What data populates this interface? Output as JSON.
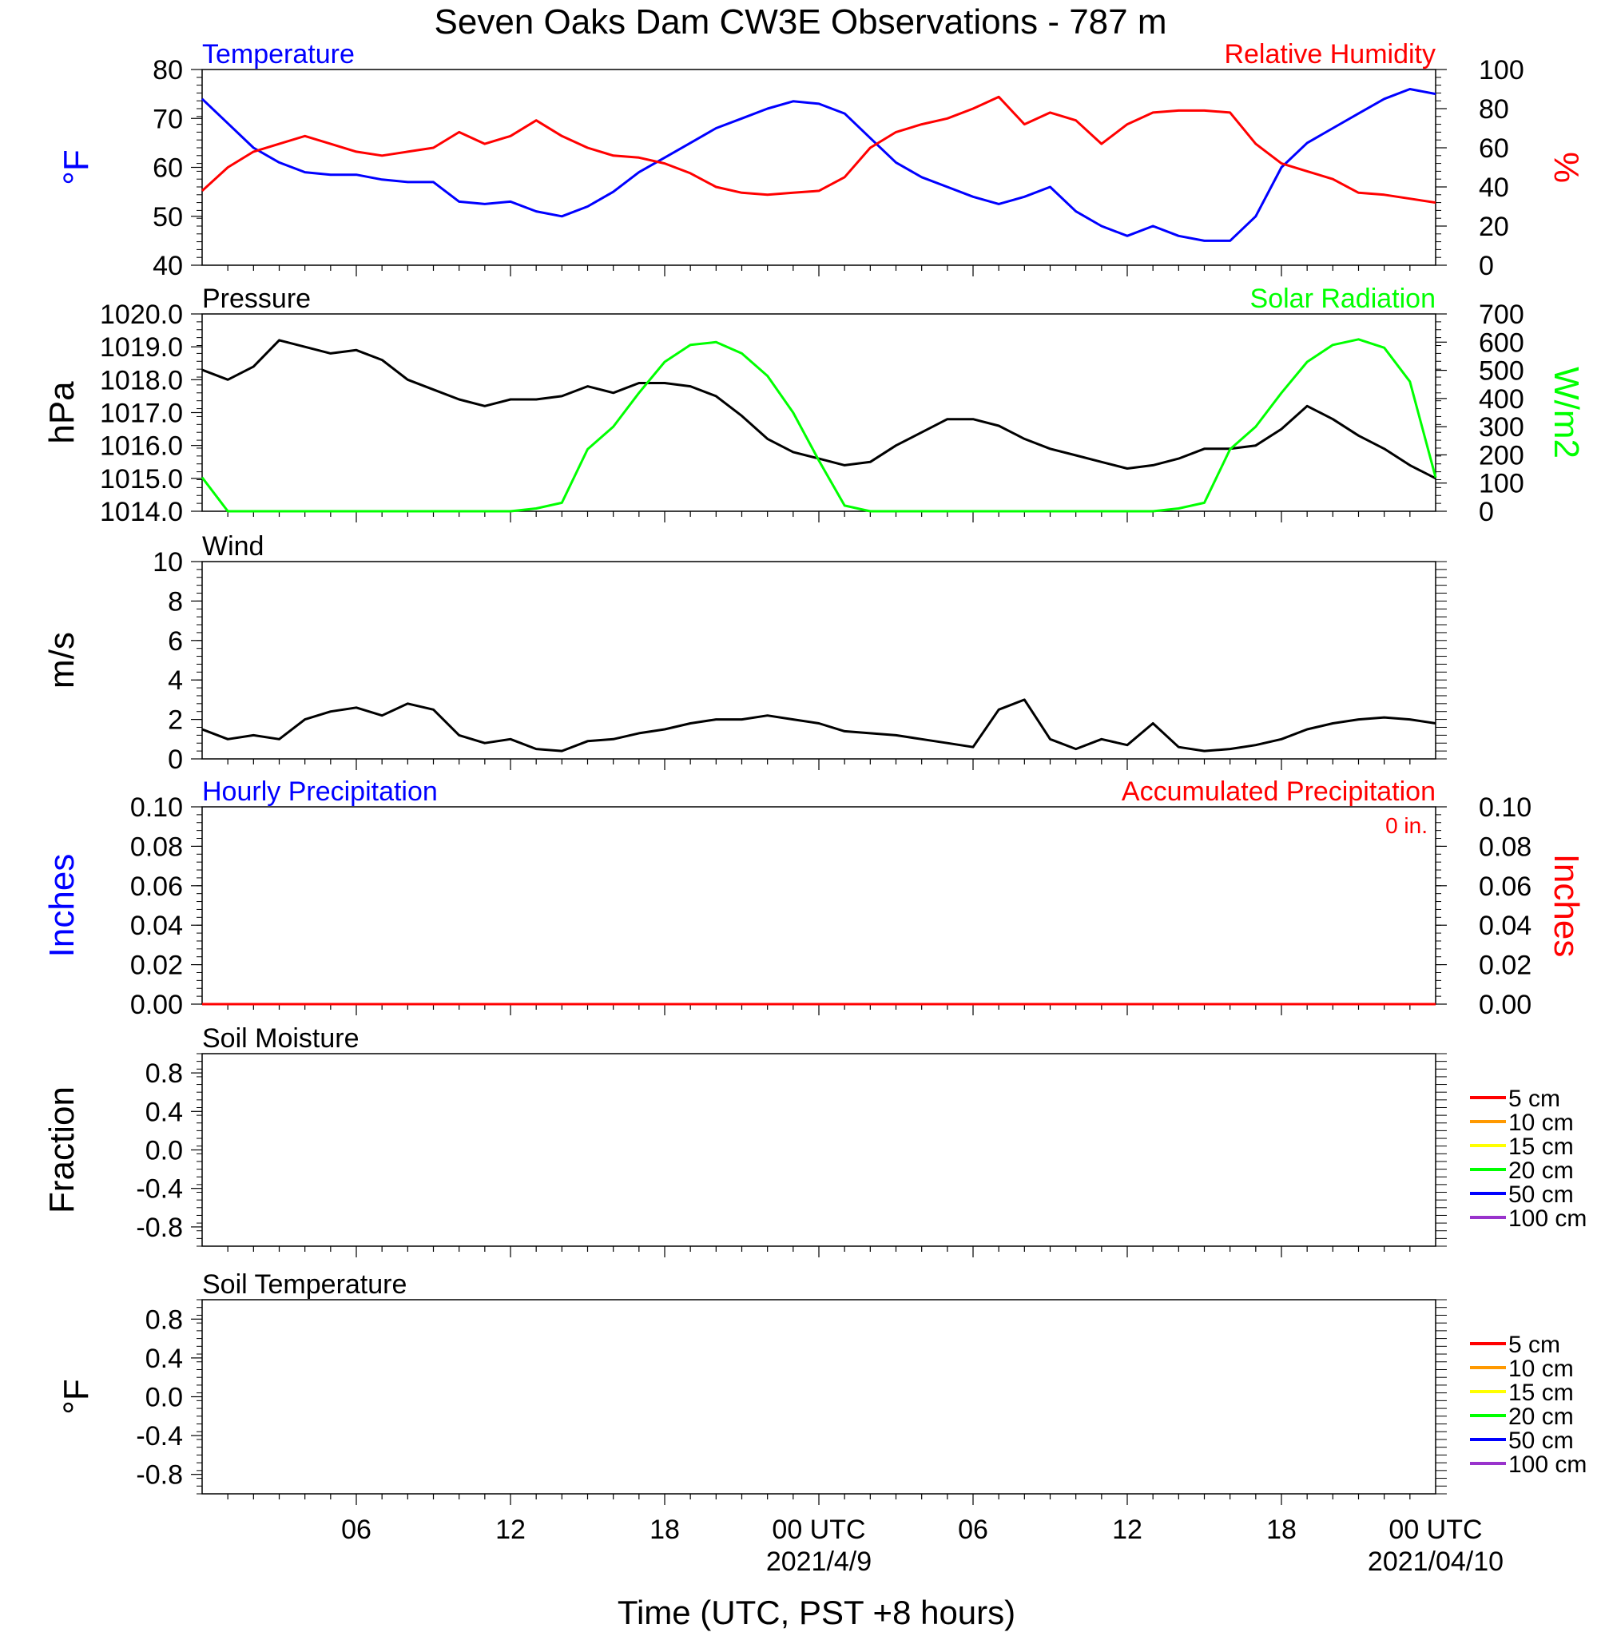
{
  "title": "Seven Oaks Dam CW3E Observations - 787 m",
  "xlabel": "Time (UTC, PST +8 hours)",
  "x_ticks": [
    "06",
    "12",
    "18",
    "00 UTC",
    "06",
    "12",
    "18",
    "00 UTC"
  ],
  "x_dates": [
    "2021/4/9",
    "2021/04/10"
  ],
  "colors": {
    "temperature": "#0000ff",
    "humidity": "#ff0000",
    "pressure": "#000000",
    "solar": "#00ff00",
    "wind": "#000000",
    "barbs": "#ff0000"
  },
  "chart_data": [
    {
      "type": "line",
      "panel": "temperature-humidity",
      "title_left": "Temperature",
      "title_right": "Relative Humidity",
      "ylabel_left": "°F",
      "ylabel_right": "%",
      "ylim_left": [
        40,
        80
      ],
      "ylim_right": [
        0,
        100
      ],
      "yticks_left": [
        "80",
        "70",
        "60",
        "50",
        "40"
      ],
      "yticks_right": [
        "100",
        "80",
        "60",
        "40",
        "20",
        "0"
      ],
      "series": [
        {
          "name": "Temperature",
          "axis": "left",
          "x": [
            0,
            1,
            2,
            3,
            4,
            5,
            6,
            7,
            8,
            9,
            10,
            11,
            12,
            13,
            14,
            15,
            16,
            17,
            18,
            19,
            20,
            21,
            22,
            23,
            24,
            25,
            26,
            27,
            28,
            29,
            30,
            31,
            32,
            33,
            34,
            35,
            36,
            37,
            38,
            39,
            40,
            41,
            42,
            43,
            44,
            45,
            46,
            47,
            48
          ],
          "y": [
            74,
            69,
            64,
            61,
            59,
            58.5,
            58.5,
            57.5,
            57,
            57,
            53,
            52.5,
            53,
            51,
            50,
            52,
            55,
            59,
            62,
            65,
            68,
            70,
            72,
            73.5,
            73,
            71,
            66,
            61,
            58,
            56,
            54,
            52.5,
            54,
            56,
            51,
            48,
            46,
            48,
            46,
            45,
            45,
            50,
            60,
            65,
            68,
            71,
            74,
            76,
            75
          ]
        },
        {
          "name": "Relative Humidity",
          "axis": "right",
          "x": [
            0,
            1,
            2,
            3,
            4,
            5,
            6,
            7,
            8,
            9,
            10,
            11,
            12,
            13,
            14,
            15,
            16,
            17,
            18,
            19,
            20,
            21,
            22,
            23,
            24,
            25,
            26,
            27,
            28,
            29,
            30,
            31,
            32,
            33,
            34,
            35,
            36,
            37,
            38,
            39,
            40,
            41,
            42,
            43,
            44,
            45,
            46,
            47,
            48
          ],
          "y": [
            38,
            50,
            58,
            62,
            66,
            62,
            58,
            56,
            58,
            60,
            68,
            62,
            66,
            74,
            66,
            60,
            56,
            55,
            52,
            47,
            40,
            37,
            36,
            37,
            38,
            45,
            60,
            68,
            72,
            75,
            80,
            86,
            72,
            78,
            74,
            62,
            72,
            78,
            79,
            79,
            78,
            62,
            52,
            48,
            44,
            37,
            36,
            34,
            32
          ]
        }
      ]
    },
    {
      "type": "line",
      "panel": "pressure-solar",
      "title_left": "Pressure",
      "title_right": "Solar Radiation",
      "ylabel_left": "hPa",
      "ylabel_right": "W/m2",
      "ylim_left": [
        1014,
        1020
      ],
      "ylim_right": [
        0,
        700
      ],
      "yticks_left": [
        "1020.0",
        "1019.0",
        "1018.0",
        "1017.0",
        "1016.0",
        "1015.0",
        "1014.0"
      ],
      "yticks_right": [
        "700",
        "600",
        "500",
        "400",
        "300",
        "200",
        "100",
        "0"
      ],
      "series": [
        {
          "name": "Pressure",
          "axis": "left",
          "x": [
            0,
            1,
            2,
            3,
            4,
            5,
            6,
            7,
            8,
            9,
            10,
            11,
            12,
            13,
            14,
            15,
            16,
            17,
            18,
            19,
            20,
            21,
            22,
            23,
            24,
            25,
            26,
            27,
            28,
            29,
            30,
            31,
            32,
            33,
            34,
            35,
            36,
            37,
            38,
            39,
            40,
            41,
            42,
            43,
            44,
            45,
            46,
            47,
            48
          ],
          "y": [
            1018.3,
            1018.0,
            1018.4,
            1019.2,
            1019.0,
            1018.8,
            1018.9,
            1018.6,
            1018.0,
            1017.7,
            1017.4,
            1017.2,
            1017.4,
            1017.4,
            1017.5,
            1017.8,
            1017.6,
            1017.9,
            1017.9,
            1017.8,
            1017.5,
            1016.9,
            1016.2,
            1015.8,
            1015.6,
            1015.4,
            1015.5,
            1016.0,
            1016.4,
            1016.8,
            1016.8,
            1016.6,
            1016.2,
            1015.9,
            1015.7,
            1015.5,
            1015.3,
            1015.4,
            1015.6,
            1015.9,
            1015.9,
            1016.0,
            1016.5,
            1017.2,
            1016.8,
            1016.3,
            1015.9,
            1015.4,
            1015.0
          ]
        },
        {
          "name": "Solar Radiation",
          "axis": "right",
          "x": [
            0,
            1,
            2,
            3,
            4,
            5,
            6,
            7,
            8,
            9,
            10,
            11,
            12,
            13,
            14,
            15,
            16,
            17,
            18,
            19,
            20,
            21,
            22,
            23,
            24,
            25,
            26,
            27,
            28,
            29,
            30,
            31,
            32,
            33,
            34,
            35,
            36,
            37,
            38,
            39,
            40,
            41,
            42,
            43,
            44,
            45,
            46,
            47,
            48
          ],
          "y": [
            120,
            0,
            0,
            0,
            0,
            0,
            0,
            0,
            0,
            0,
            0,
            0,
            0,
            10,
            30,
            220,
            300,
            420,
            530,
            590,
            600,
            560,
            480,
            350,
            180,
            20,
            0,
            0,
            0,
            0,
            0,
            0,
            0,
            0,
            0,
            0,
            0,
            0,
            10,
            30,
            220,
            300,
            420,
            530,
            590,
            610,
            580,
            460,
            120
          ]
        }
      ]
    },
    {
      "type": "line",
      "panel": "wind",
      "title_left": "Wind",
      "ylabel_left": "m/s",
      "ylim_left": [
        0,
        10
      ],
      "yticks_left": [
        "10",
        "8",
        "6",
        "4",
        "2",
        "0"
      ],
      "series": [
        {
          "name": "Wind",
          "axis": "left",
          "x": [
            0,
            1,
            2,
            3,
            4,
            5,
            6,
            7,
            8,
            9,
            10,
            11,
            12,
            13,
            14,
            15,
            16,
            17,
            18,
            19,
            20,
            21,
            22,
            23,
            24,
            25,
            26,
            27,
            28,
            29,
            30,
            31,
            32,
            33,
            34,
            35,
            36,
            37,
            38,
            39,
            40,
            41,
            42,
            43,
            44,
            45,
            46,
            47,
            48
          ],
          "y": [
            1.5,
            1.0,
            1.2,
            1.0,
            2.0,
            2.4,
            2.6,
            2.2,
            2.8,
            2.5,
            1.2,
            0.8,
            1.0,
            0.5,
            0.4,
            0.9,
            1.0,
            1.3,
            1.5,
            1.8,
            2.0,
            2.0,
            2.2,
            2.0,
            1.8,
            1.4,
            1.3,
            1.2,
            1.0,
            0.8,
            0.6,
            2.5,
            3.0,
            1.0,
            0.5,
            1.0,
            0.7,
            1.8,
            0.6,
            0.4,
            0.5,
            0.7,
            1.0,
            1.5,
            1.8,
            2.0,
            2.1,
            2.0,
            1.8
          ]
        }
      ]
    },
    {
      "type": "line",
      "panel": "precipitation",
      "title_left": "Hourly Precipitation",
      "title_right": "Accumulated Precipitation",
      "annotation": "0 in.",
      "ylabel_left": "Inches",
      "ylabel_right": "Inches",
      "ylim_left": [
        0,
        0.1
      ],
      "ylim_right": [
        0,
        0.1
      ],
      "yticks_left": [
        "0.10",
        "0.08",
        "0.06",
        "0.04",
        "0.02",
        "0.00"
      ],
      "yticks_right": [
        "0.10",
        "0.08",
        "0.06",
        "0.04",
        "0.02",
        "0.00"
      ],
      "series": [
        {
          "name": "Accumulated Precipitation",
          "axis": "right",
          "x": [
            0,
            48
          ],
          "y": [
            0,
            0
          ]
        }
      ]
    },
    {
      "type": "line",
      "panel": "soil-moisture",
      "title_left": "Soil Moisture",
      "ylabel_left": "Fraction",
      "ylim_left": [
        -1,
        1
      ],
      "yticks_left": [
        "0.8",
        "0.4",
        "0.0",
        "-0.4",
        "-0.8"
      ],
      "legend": [
        "5 cm",
        "10 cm",
        "15 cm",
        "20 cm",
        "50 cm",
        "100 cm"
      ],
      "legend_colors": [
        "#ff0000",
        "#ff9900",
        "#ffff00",
        "#00ff00",
        "#0000ff",
        "#9933cc"
      ],
      "series": []
    },
    {
      "type": "line",
      "panel": "soil-temperature",
      "title_left": "Soil Temperature",
      "ylabel_left": "°F",
      "ylim_left": [
        -1,
        1
      ],
      "yticks_left": [
        "0.8",
        "0.4",
        "0.0",
        "-0.4",
        "-0.8"
      ],
      "legend": [
        "5 cm",
        "10 cm",
        "15 cm",
        "20 cm",
        "50 cm",
        "100 cm"
      ],
      "legend_colors": [
        "#ff0000",
        "#ff9900",
        "#ffff00",
        "#00ff00",
        "#0000ff",
        "#9933cc"
      ],
      "series": []
    }
  ]
}
